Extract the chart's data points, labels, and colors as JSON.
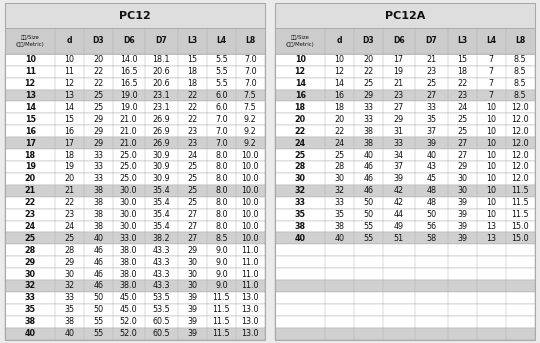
{
  "pc12_title": "PC12",
  "pc12a_title": "PC12A",
  "header_label_line1": "規格/Size",
  "header_label_line2": "(公制/Metric)",
  "columns": [
    "d",
    "D3",
    "D6",
    "D7",
    "L3",
    "L4",
    "L8"
  ],
  "pc12_data": [
    [
      "10",
      "10",
      "20",
      "14.0",
      "18.1",
      "15",
      "5.5",
      "7.0"
    ],
    [
      "11",
      "11",
      "22",
      "16.5",
      "20.6",
      "18",
      "5.5",
      "7.0"
    ],
    [
      "12",
      "12",
      "22",
      "16.5",
      "20.6",
      "18",
      "5.5",
      "7.0"
    ],
    [
      "13",
      "13",
      "25",
      "19.0",
      "23.1",
      "22",
      "6.0",
      "7.5"
    ],
    [
      "14",
      "14",
      "25",
      "19.0",
      "23.1",
      "22",
      "6.0",
      "7.5"
    ],
    [
      "15",
      "15",
      "29",
      "21.0",
      "26.9",
      "22",
      "7.0",
      "9.2"
    ],
    [
      "16",
      "16",
      "29",
      "21.0",
      "26.9",
      "23",
      "7.0",
      "9.2"
    ],
    [
      "17",
      "17",
      "29",
      "21.0",
      "26.9",
      "23",
      "7.0",
      "9.2"
    ],
    [
      "18",
      "18",
      "33",
      "25.0",
      "30.9",
      "24",
      "8.0",
      "10.0"
    ],
    [
      "19",
      "19",
      "33",
      "25.0",
      "30.9",
      "25",
      "8.0",
      "10.0"
    ],
    [
      "20",
      "20",
      "33",
      "25.0",
      "30.9",
      "25",
      "8.0",
      "10.0"
    ],
    [
      "21",
      "21",
      "38",
      "30.0",
      "35.4",
      "25",
      "8.0",
      "10.0"
    ],
    [
      "22",
      "22",
      "38",
      "30.0",
      "35.4",
      "25",
      "8.0",
      "10.0"
    ],
    [
      "23",
      "23",
      "38",
      "30.0",
      "35.4",
      "27",
      "8.0",
      "10.0"
    ],
    [
      "24",
      "24",
      "38",
      "30.0",
      "35.4",
      "27",
      "8.0",
      "10.0"
    ],
    [
      "25",
      "25",
      "40",
      "33.0",
      "38.2",
      "27",
      "8.5",
      "10.0"
    ],
    [
      "28",
      "28",
      "46",
      "38.0",
      "43.3",
      "29",
      "9.0",
      "11.0"
    ],
    [
      "29",
      "29",
      "46",
      "38.0",
      "43.3",
      "30",
      "9.0",
      "11.0"
    ],
    [
      "30",
      "30",
      "46",
      "38.0",
      "43.3",
      "30",
      "9.0",
      "11.0"
    ],
    [
      "32",
      "32",
      "46",
      "38.0",
      "43.3",
      "30",
      "9.0",
      "11.0"
    ],
    [
      "33",
      "33",
      "50",
      "45.0",
      "53.5",
      "39",
      "11.5",
      "13.0"
    ],
    [
      "35",
      "35",
      "50",
      "45.0",
      "53.5",
      "39",
      "11.5",
      "13.0"
    ],
    [
      "38",
      "38",
      "55",
      "52.0",
      "60.5",
      "39",
      "11.5",
      "13.0"
    ],
    [
      "40",
      "40",
      "55",
      "52.0",
      "60.5",
      "39",
      "11.5",
      "13.0"
    ]
  ],
  "pc12a_data": [
    [
      "10",
      "10",
      "20",
      "17",
      "21",
      "15",
      "7",
      "8.5"
    ],
    [
      "12",
      "12",
      "22",
      "19",
      "23",
      "18",
      "7",
      "8.5"
    ],
    [
      "14",
      "14",
      "25",
      "21",
      "25",
      "22",
      "7",
      "8.5"
    ],
    [
      "16",
      "16",
      "29",
      "23",
      "27",
      "23",
      "7",
      "8.5"
    ],
    [
      "18",
      "18",
      "33",
      "27",
      "33",
      "24",
      "10",
      "12.0"
    ],
    [
      "20",
      "20",
      "33",
      "29",
      "35",
      "25",
      "10",
      "12.0"
    ],
    [
      "22",
      "22",
      "38",
      "31",
      "37",
      "25",
      "10",
      "12.0"
    ],
    [
      "24",
      "24",
      "38",
      "33",
      "39",
      "27",
      "10",
      "12.0"
    ],
    [
      "25",
      "25",
      "40",
      "34",
      "40",
      "27",
      "10",
      "12.0"
    ],
    [
      "28",
      "28",
      "46",
      "37",
      "43",
      "29",
      "10",
      "12.0"
    ],
    [
      "30",
      "30",
      "46",
      "39",
      "45",
      "30",
      "10",
      "12.0"
    ],
    [
      "32",
      "32",
      "46",
      "42",
      "48",
      "30",
      "10",
      "11.5"
    ],
    [
      "33",
      "33",
      "50",
      "42",
      "48",
      "39",
      "10",
      "11.5"
    ],
    [
      "35",
      "35",
      "50",
      "44",
      "50",
      "39",
      "10",
      "11.5"
    ],
    [
      "38",
      "38",
      "55",
      "49",
      "56",
      "39",
      "13",
      "15.0"
    ],
    [
      "40",
      "40",
      "55",
      "51",
      "58",
      "39",
      "13",
      "15.0"
    ],
    [
      "",
      "",
      "",
      "",
      "",
      "",
      "",
      ""
    ],
    [
      "",
      "",
      "",
      "",
      "",
      "",
      "",
      ""
    ],
    [
      "",
      "",
      "",
      "",
      "",
      "",
      "",
      ""
    ],
    [
      "",
      "",
      "",
      "",
      "",
      "",
      "",
      ""
    ],
    [
      "",
      "",
      "",
      "",
      "",
      "",
      "",
      ""
    ],
    [
      "",
      "",
      "",
      "",
      "",
      "",
      "",
      ""
    ],
    [
      "",
      "",
      "",
      "",
      "",
      "",
      "",
      ""
    ],
    [
      "",
      "",
      "",
      "",
      "",
      "",
      "",
      ""
    ]
  ],
  "pc12_shaded_rows": [
    3,
    7,
    11,
    15,
    19,
    23
  ],
  "pc12a_shaded_rows": [
    3,
    7,
    11,
    15,
    19,
    23
  ],
  "bg_color": "#ebebeb",
  "header_bg": "#cccccc",
  "title_bg": "#dedede",
  "shaded_row_color": "#d0d0d0",
  "white_row_color": "#ffffff",
  "border_color": "#aaaaaa",
  "text_color": "#111111",
  "font_size_title": 8,
  "font_size_header": 5.5,
  "font_size_data": 5.8
}
